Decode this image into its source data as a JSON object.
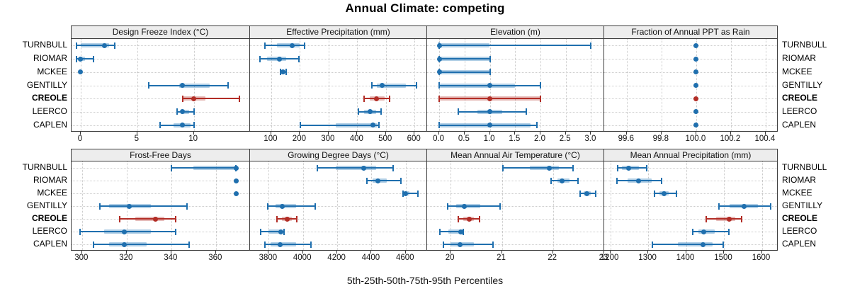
{
  "title": "Annual Climate: competing",
  "caption": "5th-25th-50th-75th-95th Percentiles",
  "sites": [
    "TURNBULL",
    "RIOMAR",
    "MCKEE",
    "GENTILLY",
    "CREOLE",
    "LEERCO",
    "CAPLEN"
  ],
  "highlighted_site": "CREOLE",
  "percentile_order": [
    "p5",
    "p25",
    "p50",
    "p75",
    "p95"
  ],
  "colors": {
    "series": "#1f6fae",
    "series_band": "rgba(49,130,189,0.38)",
    "highlight": "#b22d26",
    "highlight_band": "rgba(178,45,38,0.32)",
    "strip_bg": "#ededed",
    "panel_border": "#3c3c3c",
    "grid": "#c9c9c9"
  },
  "chart_data": [
    {
      "type": "dotplot-percentiles",
      "title": "Design Freeze Index (°C)",
      "row": 0,
      "col": 0,
      "xlim": [
        -0.81,
        14.97
      ],
      "ticks": [
        0,
        5,
        10
      ],
      "tick_labels": [
        "0",
        "5",
        "10"
      ],
      "series": [
        {
          "site": "TURNBULL",
          "values": [
            -0.4,
            0.0,
            2.1,
            2.5,
            3.0
          ]
        },
        {
          "site": "RIOMAR",
          "values": [
            -0.4,
            -0.1,
            0.0,
            0.4,
            1.1
          ]
        },
        {
          "site": "MCKEE",
          "values": [
            0,
            0,
            0,
            0,
            0
          ]
        },
        {
          "site": "GENTILLY",
          "values": [
            6.0,
            8.7,
            9.0,
            11.4,
            13.0
          ]
        },
        {
          "site": "CREOLE",
          "values": [
            9.0,
            9.0,
            10.0,
            11.0,
            14.0
          ]
        },
        {
          "site": "LEERCO",
          "values": [
            8.5,
            8.8,
            9.0,
            9.6,
            10.0
          ]
        },
        {
          "site": "CAPLEN",
          "values": [
            7.0,
            8.2,
            9.0,
            9.7,
            10.0
          ]
        }
      ]
    },
    {
      "type": "dotplot-percentiles",
      "title": "Effective Precipitation (mm)",
      "row": 0,
      "col": 1,
      "xlim": [
        26,
        644
      ],
      "ticks": [
        100,
        200,
        300,
        400,
        500,
        600
      ],
      "tick_labels": [
        "100",
        "200",
        "300",
        "400",
        "500",
        "600"
      ],
      "series": [
        {
          "site": "TURNBULL",
          "values": [
            78,
            120,
            172,
            199,
            217
          ]
        },
        {
          "site": "RIOMAR",
          "values": [
            61,
            84,
            129,
            153,
            196
          ]
        },
        {
          "site": "MCKEE",
          "values": [
            132,
            136,
            141,
            147,
            152
          ]
        },
        {
          "site": "GENTILLY",
          "values": [
            450,
            468,
            487,
            569,
            608
          ]
        },
        {
          "site": "CREOLE",
          "values": [
            424,
            444,
            466,
            495,
            513
          ]
        },
        {
          "site": "LEERCO",
          "values": [
            404,
            425,
            444,
            465,
            483
          ]
        },
        {
          "site": "CAPLEN",
          "values": [
            201,
            326,
            454,
            470,
            476
          ]
        }
      ]
    },
    {
      "type": "dotplot-percentiles",
      "title": "Elevation (m)",
      "row": 0,
      "col": 2,
      "xlim": [
        -0.24,
        3.26
      ],
      "ticks": [
        0.0,
        0.5,
        1.0,
        1.5,
        2.0,
        2.5,
        3.0
      ],
      "tick_labels": [
        "0.0",
        "0.5",
        "1.0",
        "1.5",
        "2.0",
        "2.5",
        "3.0"
      ],
      "series": [
        {
          "site": "TURNBULL",
          "values": [
            0,
            0,
            0,
            1,
            3
          ]
        },
        {
          "site": "RIOMAR",
          "values": [
            0,
            0,
            0,
            1,
            1
          ]
        },
        {
          "site": "MCKEE",
          "values": [
            0,
            0,
            0,
            1,
            1
          ]
        },
        {
          "site": "GENTILLY",
          "values": [
            0,
            0,
            1,
            1.5,
            2
          ]
        },
        {
          "site": "CREOLE",
          "values": [
            0,
            0,
            1,
            2,
            2
          ]
        },
        {
          "site": "LEERCO",
          "values": [
            0.37,
            0.75,
            1,
            1.25,
            1.72
          ]
        },
        {
          "site": "CAPLEN",
          "values": [
            0,
            0,
            1,
            1.8,
            1.93
          ]
        }
      ]
    },
    {
      "type": "dotplot-percentiles",
      "title": "Fraction of Annual PPT as Rain",
      "row": 0,
      "col": 3,
      "xlim": [
        99.47,
        100.47
      ],
      "ticks": [
        99.6,
        99.8,
        100.0,
        100.2,
        100.4
      ],
      "tick_labels": [
        "99.6",
        "99.8",
        "100.0",
        "100.2",
        "100.4"
      ],
      "series": [
        {
          "site": "TURNBULL",
          "values": [
            100,
            100,
            100,
            100,
            100
          ]
        },
        {
          "site": "RIOMAR",
          "values": [
            100,
            100,
            100,
            100,
            100
          ]
        },
        {
          "site": "MCKEE",
          "values": [
            100,
            100,
            100,
            100,
            100
          ]
        },
        {
          "site": "GENTILLY",
          "values": [
            100,
            100,
            100,
            100,
            100
          ]
        },
        {
          "site": "CREOLE",
          "values": [
            100,
            100,
            100,
            100,
            100
          ]
        },
        {
          "site": "LEERCO",
          "values": [
            100,
            100,
            100,
            100,
            100
          ]
        },
        {
          "site": "CAPLEN",
          "values": [
            100,
            100,
            100,
            100,
            100
          ]
        }
      ]
    },
    {
      "type": "dotplot-percentiles",
      "title": "Frost-Free Days",
      "row": 1,
      "col": 0,
      "xlim": [
        295.3,
        375.3
      ],
      "ticks": [
        300,
        320,
        340,
        360
      ],
      "tick_labels": [
        "300",
        "320",
        "340",
        "360"
      ],
      "series": [
        {
          "site": "TURNBULL",
          "values": [
            340,
            350,
            369,
            369,
            369
          ]
        },
        {
          "site": "RIOMAR",
          "values": [
            369,
            369,
            369,
            369,
            369
          ]
        },
        {
          "site": "MCKEE",
          "values": [
            369,
            369,
            369,
            369,
            369
          ]
        },
        {
          "site": "GENTILLY",
          "values": [
            308,
            312,
            321,
            331,
            347
          ]
        },
        {
          "site": "CREOLE",
          "values": [
            317,
            324,
            333,
            337,
            342
          ]
        },
        {
          "site": "LEERCO",
          "values": [
            299,
            310,
            319,
            331,
            342
          ]
        },
        {
          "site": "CAPLEN",
          "values": [
            305,
            312,
            319,
            329,
            348
          ]
        }
      ]
    },
    {
      "type": "dotplot-percentiles",
      "title": "Growing Degree Days (°C)",
      "row": 1,
      "col": 1,
      "xlim": [
        3691,
        4725
      ],
      "ticks": [
        3800,
        4000,
        4200,
        4400,
        4600
      ],
      "tick_labels": [
        "3800",
        "4000",
        "4200",
        "4400",
        "4600"
      ],
      "series": [
        {
          "site": "TURNBULL",
          "values": [
            4083,
            4193,
            4354,
            4428,
            4527
          ]
        },
        {
          "site": "RIOMAR",
          "values": [
            4375,
            4405,
            4439,
            4490,
            4572
          ]
        },
        {
          "site": "MCKEE",
          "values": [
            4586,
            4590,
            4597,
            4620,
            4669
          ]
        },
        {
          "site": "GENTILLY",
          "values": [
            3793,
            3840,
            3880,
            3959,
            4072
          ]
        },
        {
          "site": "CREOLE",
          "values": [
            3848,
            3875,
            3908,
            3935,
            3965
          ]
        },
        {
          "site": "LEERCO",
          "values": [
            3752,
            3800,
            3869,
            3880,
            3890
          ]
        },
        {
          "site": "CAPLEN",
          "values": [
            3777,
            3810,
            3865,
            3960,
            4048
          ]
        }
      ]
    },
    {
      "type": "dotplot-percentiles",
      "title": "Mean Annual Air Temperature (°C)",
      "row": 1,
      "col": 2,
      "xlim": [
        19.54,
        23.0
      ],
      "ticks": [
        20,
        21,
        22,
        23
      ],
      "tick_labels": [
        "20",
        "21",
        "22",
        "23"
      ],
      "series": [
        {
          "site": "TURNBULL",
          "values": [
            21.02,
            21.55,
            21.92,
            22.12,
            22.39
          ]
        },
        {
          "site": "RIOMAR",
          "values": [
            21.96,
            22.08,
            22.18,
            22.32,
            22.49
          ]
        },
        {
          "site": "MCKEE",
          "values": [
            22.53,
            22.6,
            22.66,
            22.74,
            22.84
          ]
        },
        {
          "site": "GENTILLY",
          "values": [
            19.94,
            20.1,
            20.27,
            20.57,
            20.96
          ]
        },
        {
          "site": "CREOLE",
          "values": [
            20.15,
            20.25,
            20.36,
            20.46,
            20.57
          ]
        },
        {
          "site": "LEERCO",
          "values": [
            19.79,
            19.95,
            20.2,
            20.22,
            20.25
          ]
        },
        {
          "site": "CAPLEN",
          "values": [
            19.86,
            20.0,
            20.18,
            20.45,
            20.83
          ]
        }
      ]
    },
    {
      "type": "dotplot-percentiles",
      "title": "Mean Annual Precipitation (mm)",
      "row": 1,
      "col": 3,
      "xlim": [
        1184,
        1642
      ],
      "ticks": [
        1200,
        1300,
        1400,
        1500,
        1600
      ],
      "tick_labels": [
        "1200",
        "1300",
        "1400",
        "1500",
        "1600"
      ],
      "series": [
        {
          "site": "TURNBULL",
          "values": [
            1220,
            1230,
            1248,
            1275,
            1297
          ]
        },
        {
          "site": "RIOMAR",
          "values": [
            1218,
            1245,
            1275,
            1310,
            1335
          ]
        },
        {
          "site": "MCKEE",
          "values": [
            1316,
            1330,
            1342,
            1355,
            1374
          ]
        },
        {
          "site": "GENTILLY",
          "values": [
            1487,
            1515,
            1553,
            1590,
            1623
          ]
        },
        {
          "site": "CREOLE",
          "values": [
            1453,
            1480,
            1513,
            1530,
            1546
          ]
        },
        {
          "site": "LEERCO",
          "values": [
            1418,
            1432,
            1446,
            1475,
            1512
          ]
        },
        {
          "site": "CAPLEN",
          "values": [
            1311,
            1379,
            1445,
            1470,
            1498
          ]
        }
      ]
    }
  ]
}
